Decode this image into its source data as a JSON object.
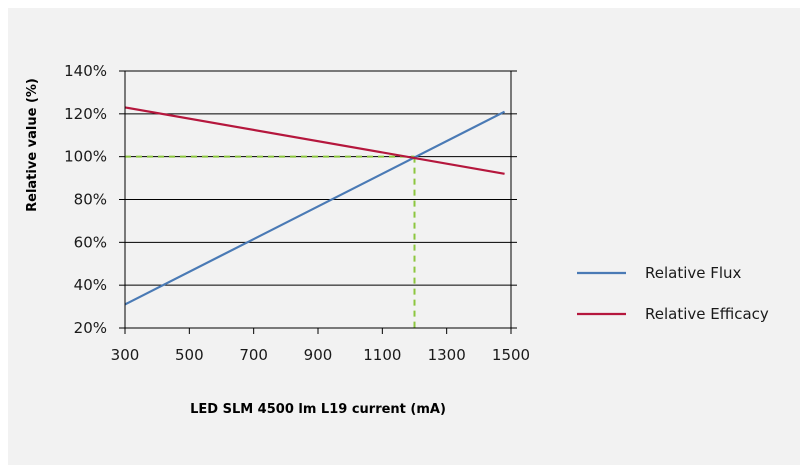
{
  "chart_data": {
    "type": "line",
    "title": "",
    "xlabel": "LED SLM 4500 lm L19 current (mA)",
    "ylabel": "Relative value (%)",
    "x_ticks": [
      "300",
      "500",
      "700",
      "900",
      "1100",
      "1300",
      "1500"
    ],
    "y_ticks": [
      "20%",
      "40%",
      "60%",
      "80%",
      "100%",
      "120%",
      "140%"
    ],
    "xlim": [
      300,
      1500
    ],
    "ylim": [
      20,
      140
    ],
    "grid": "horizontal",
    "legend_position": "right",
    "series": [
      {
        "name": "Relative Flux",
        "color": "#4a7ab5",
        "x": [
          300,
          1480
        ],
        "y": [
          31,
          121
        ]
      },
      {
        "name": "Relative Efficacy",
        "color": "#b5173d",
        "x": [
          300,
          1480
        ],
        "y": [
          123,
          92
        ]
      }
    ],
    "reference": {
      "x": 1200,
      "y": 100,
      "color": "#8cc63f"
    }
  }
}
